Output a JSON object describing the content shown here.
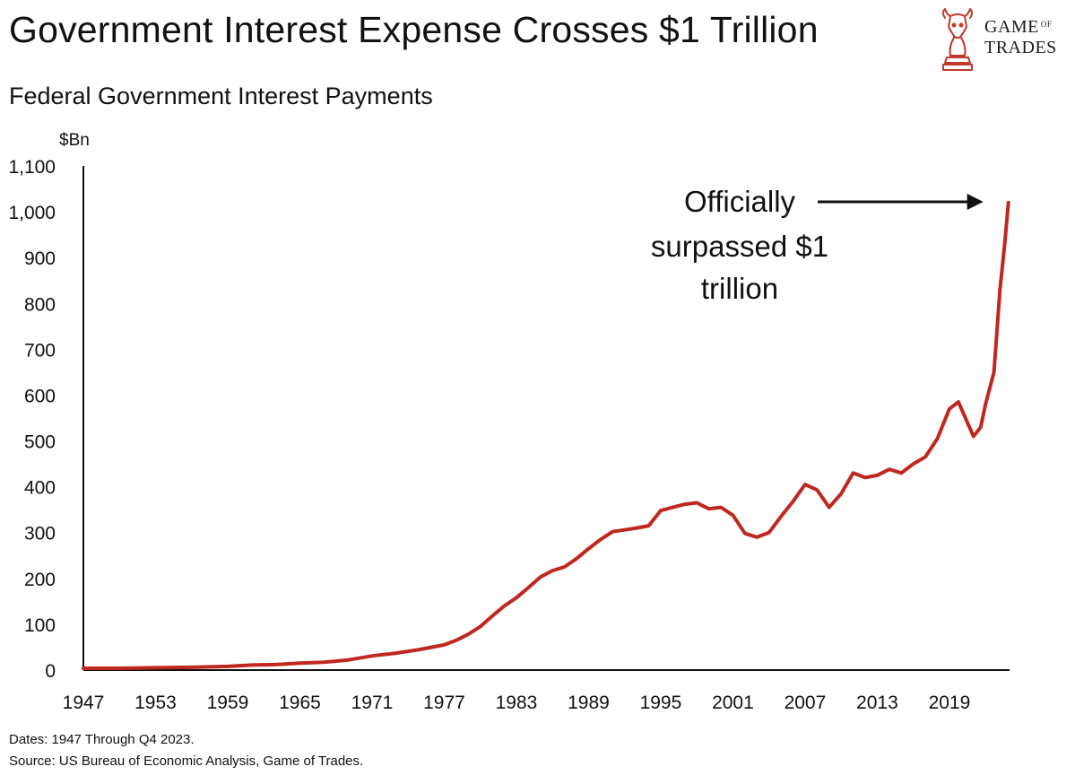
{
  "header": {
    "title": "Government Interest Expense Crosses $1 Trillion",
    "subtitle": "Federal Government Interest Payments"
  },
  "logo": {
    "line1": "GAME",
    "line1_small": "OF",
    "line2": "TRADES",
    "accent_color": "#c0392b"
  },
  "footer": {
    "dates": "Dates: 1947 Through Q4 2023.",
    "source": "Source: US Bureau of Economic Analysis, Game of Trades."
  },
  "chart_data": {
    "type": "line",
    "title": "Federal Government Interest Payments",
    "ylabel": "$Bn",
    "xlabel": "",
    "xlim": [
      1947,
      2024
    ],
    "ylim": [
      0,
      1100
    ],
    "x_ticks": [
      "1947",
      "1953",
      "1959",
      "1965",
      "1971",
      "1977",
      "1983",
      "1989",
      "1995",
      "2001",
      "2007",
      "2013",
      "2019"
    ],
    "y_ticks": [
      "0",
      "100",
      "200",
      "300",
      "400",
      "500",
      "600",
      "700",
      "800",
      "900",
      "1,000",
      "1,100"
    ],
    "grid": false,
    "series": [
      {
        "color": "#c0281f",
        "points": [
          [
            1947,
            4
          ],
          [
            1950,
            4
          ],
          [
            1953,
            5
          ],
          [
            1956,
            6
          ],
          [
            1959,
            8
          ],
          [
            1961,
            11
          ],
          [
            1963,
            12
          ],
          [
            1965,
            15
          ],
          [
            1967,
            17
          ],
          [
            1969,
            22
          ],
          [
            1971,
            31
          ],
          [
            1973,
            37
          ],
          [
            1975,
            45
          ],
          [
            1977,
            55
          ],
          [
            1978,
            65
          ],
          [
            1979,
            78
          ],
          [
            1980,
            95
          ],
          [
            1981,
            118
          ],
          [
            1982,
            140
          ],
          [
            1983,
            158
          ],
          [
            1984,
            180
          ],
          [
            1985,
            203
          ],
          [
            1986,
            217
          ],
          [
            1987,
            225
          ],
          [
            1988,
            243
          ],
          [
            1989,
            265
          ],
          [
            1990,
            285
          ],
          [
            1991,
            302
          ],
          [
            1992,
            306
          ],
          [
            1993,
            310
          ],
          [
            1994,
            315
          ],
          [
            1995,
            348
          ],
          [
            1996,
            355
          ],
          [
            1997,
            362
          ],
          [
            1998,
            365
          ],
          [
            1999,
            352
          ],
          [
            2000,
            355
          ],
          [
            2001,
            338
          ],
          [
            2002,
            298
          ],
          [
            2003,
            290
          ],
          [
            2004,
            300
          ],
          [
            2005,
            335
          ],
          [
            2006,
            368
          ],
          [
            2007,
            405
          ],
          [
            2008,
            393
          ],
          [
            2009,
            355
          ],
          [
            2010,
            385
          ],
          [
            2011,
            430
          ],
          [
            2012,
            420
          ],
          [
            2013,
            425
          ],
          [
            2014,
            438
          ],
          [
            2015,
            430
          ],
          [
            2016,
            450
          ],
          [
            2017,
            465
          ],
          [
            2018,
            505
          ],
          [
            2019,
            570
          ],
          [
            2019.75,
            585
          ],
          [
            2020.5,
            540
          ],
          [
            2021,
            510
          ],
          [
            2021.6,
            530
          ],
          [
            2022,
            580
          ],
          [
            2022.7,
            650
          ],
          [
            2023.2,
            830
          ],
          [
            2023.6,
            930
          ],
          [
            2023.9,
            1020
          ]
        ]
      }
    ],
    "annotation": {
      "lines": [
        "Officially",
        "surpassed $1",
        "trillion"
      ],
      "arrow_to": [
        2023.9,
        1020
      ]
    }
  }
}
